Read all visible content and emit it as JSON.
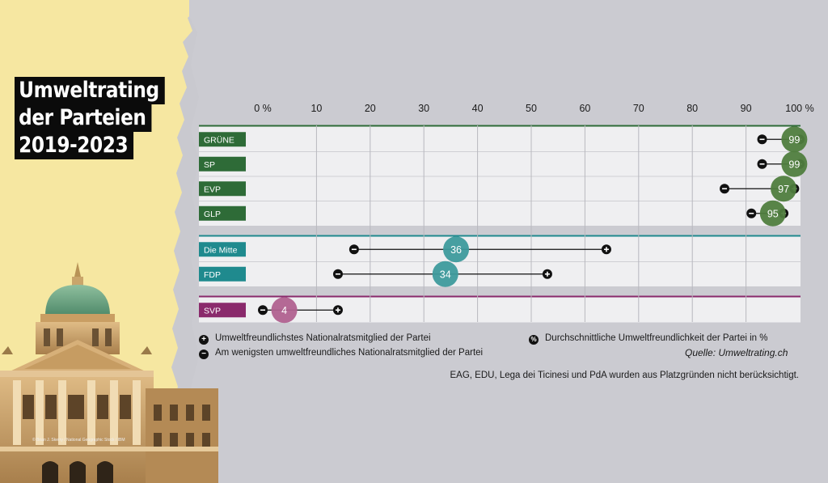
{
  "title_lines": [
    "Umweltrating",
    "der Parteien",
    "2019-2023"
  ],
  "photo_credit": "© Brian J. Skerry / National Geographic Stock / IBM",
  "chart_data": {
    "type": "dumbbell",
    "title": "Umweltrating der Parteien 2019-2023",
    "x_ticks": [
      "0 %",
      "10",
      "20",
      "30",
      "40",
      "50",
      "60",
      "70",
      "80",
      "90",
      "100 %"
    ],
    "xlim": [
      0,
      100
    ],
    "groups": [
      {
        "color": "#2e6b37",
        "bubble": "#4f7d3e",
        "parties": [
          {
            "name": "GRÜNE",
            "min": 93,
            "avg": 99,
            "avg_label": "99",
            "max": 100
          },
          {
            "name": "SP",
            "min": 93,
            "avg": 99,
            "avg_label": "99",
            "max": 100
          },
          {
            "name": "EVP",
            "min": 86,
            "avg": 97,
            "avg_label": "97",
            "max": 99
          },
          {
            "name": "GLP",
            "min": 91,
            "avg": 95,
            "avg_label": "95",
            "max": 97
          }
        ]
      },
      {
        "color": "#1f8a8e",
        "bubble": "#3d9a9c",
        "parties": [
          {
            "name": "Die Mitte",
            "min": 17,
            "avg": 36,
            "avg_label": "36",
            "max": 64
          },
          {
            "name": "FDP",
            "min": 14,
            "avg": 34,
            "avg_label": "34",
            "max": 53
          }
        ]
      },
      {
        "color": "#8a2a6c",
        "bubble": "#b0618f",
        "parties": [
          {
            "name": "SVP",
            "min": 0,
            "avg": 4,
            "avg_label": "4",
            "max": 14
          }
        ]
      }
    ]
  },
  "legend": {
    "max_label": "Umweltfreundlichstes Nationalratsmitglied der Partei",
    "min_label": "Am wenigsten umweltfreundliches Nationalratsmitglied der Partei",
    "avg_label": "Durchschnittliche Umweltfreundlichkeit der Partei in %",
    "avg_icon": "%",
    "plus_icon": "+",
    "minus_icon": "−"
  },
  "source": "Quelle: Umweltrating.ch",
  "footnote": "EAG, EDU, Lega dei Ticinesi und PdA wurden aus Platzgründen nicht berücksichtigt."
}
